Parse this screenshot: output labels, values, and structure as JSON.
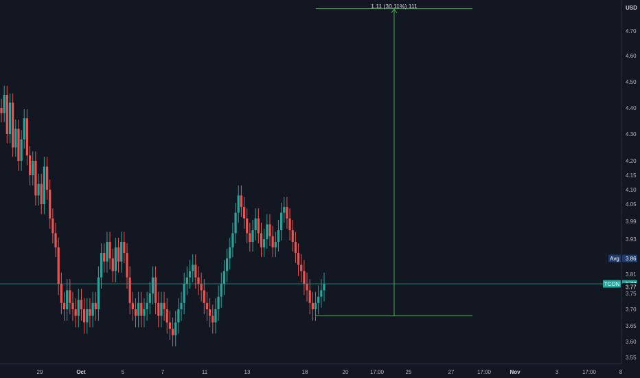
{
  "price_axis": {
    "currency_label": "USD",
    "tick_labels": [
      "4.70",
      "4.60",
      "4.50",
      "4.40",
      "4.30",
      "4.20",
      "4.15",
      "4.10",
      "4.05",
      "3.99",
      "3.93",
      "3.81",
      "3.75",
      "3.70",
      "3.65",
      "3.60",
      "3.55"
    ],
    "tags": [
      {
        "label": "Avg",
        "value": "3.86",
        "type": "avg",
        "color": "#1e3a6e"
      },
      {
        "label": "TCON",
        "value": "3.78",
        "type": "last",
        "color": "#26a69a"
      },
      {
        "label": "",
        "value": "3.77",
        "type": "plain",
        "color": "#131722"
      }
    ]
  },
  "time_axis": {
    "labels": [
      {
        "text": "29",
        "bold": false
      },
      {
        "text": "Oct",
        "bold": true
      },
      {
        "text": "5",
        "bold": false
      },
      {
        "text": "7",
        "bold": false
      },
      {
        "text": "11",
        "bold": false
      },
      {
        "text": "13",
        "bold": false
      },
      {
        "text": "18",
        "bold": false
      },
      {
        "text": "20",
        "bold": false
      },
      {
        "text": "17:00",
        "bold": false
      },
      {
        "text": "25",
        "bold": false
      },
      {
        "text": "27",
        "bold": false
      },
      {
        "text": "17:00",
        "bold": false
      },
      {
        "text": "Nov",
        "bold": true
      },
      {
        "text": "3",
        "bold": false
      },
      {
        "text": "17:00",
        "bold": false
      },
      {
        "text": "8",
        "bold": false
      }
    ]
  },
  "measure_tool": {
    "label": "1.11 (30.11%) 111",
    "from_price": 3.68,
    "to_price": 4.79
  },
  "colors": {
    "background": "#131722",
    "up": "#26a69a",
    "down": "#ef5350",
    "measure": "#4caf50",
    "last_price_line": "#26a69a"
  },
  "chart_data": {
    "type": "candlestick",
    "symbol": "TCON",
    "currency": "USD",
    "last_price": 3.78,
    "average_price": 3.86,
    "ylim": [
      3.53,
      4.8
    ],
    "closes": [
      4.38,
      4.45,
      4.3,
      4.42,
      4.25,
      4.32,
      4.2,
      4.28,
      4.36,
      4.22,
      4.15,
      4.2,
      4.08,
      4.12,
      4.05,
      4.18,
      4.1,
      4.0,
      3.95,
      3.9,
      3.78,
      3.72,
      3.7,
      3.76,
      3.72,
      3.7,
      3.68,
      3.73,
      3.7,
      3.66,
      3.7,
      3.68,
      3.72,
      3.7,
      3.8,
      3.88,
      3.85,
      3.92,
      3.86,
      3.82,
      3.9,
      3.85,
      3.92,
      3.88,
      3.8,
      3.72,
      3.7,
      3.68,
      3.72,
      3.68,
      3.7,
      3.72,
      3.75,
      3.8,
      3.72,
      3.68,
      3.72,
      3.7,
      3.66,
      3.64,
      3.62,
      3.66,
      3.7,
      3.72,
      3.78,
      3.8,
      3.82,
      3.84,
      3.8,
      3.78,
      3.76,
      3.72,
      3.7,
      3.68,
      3.66,
      3.7,
      3.74,
      3.78,
      3.82,
      3.86,
      3.9,
      3.95,
      4.02,
      4.08,
      4.04,
      4.0,
      3.95,
      3.92,
      3.96,
      4.0,
      3.95,
      3.9,
      3.93,
      3.98,
      3.94,
      3.9,
      3.92,
      3.96,
      4.02,
      4.04,
      4.0,
      3.96,
      3.92,
      3.88,
      3.84,
      3.82,
      3.78,
      3.76,
      3.72,
      3.7,
      3.72,
      3.74,
      3.76,
      3.78
    ]
  }
}
